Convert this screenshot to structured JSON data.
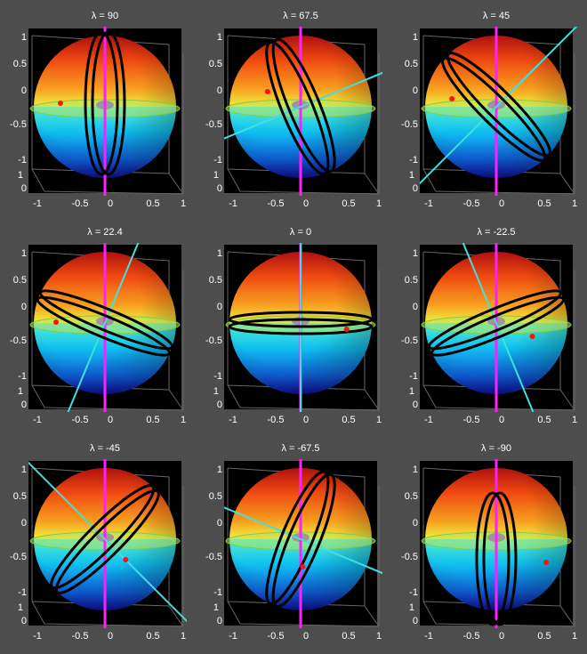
{
  "panels": [
    {
      "title": "λ = 90"
    },
    {
      "title": "λ = 67.5"
    },
    {
      "title": "λ = 45"
    },
    {
      "title": "λ = 22.4"
    },
    {
      "title": "λ = 0"
    },
    {
      "title": "λ = -22.5"
    },
    {
      "title": "λ = -45"
    },
    {
      "title": "λ = -67.5"
    },
    {
      "title": "λ = -90"
    }
  ],
  "axes": {
    "z_ticks": [
      "1",
      "0.5",
      "0",
      "-0.5",
      "-1"
    ],
    "y_ticks": [
      "1",
      "0"
    ],
    "x_ticks": [
      "-1",
      "-0.5",
      "0",
      "0.5",
      "1"
    ]
  }
}
